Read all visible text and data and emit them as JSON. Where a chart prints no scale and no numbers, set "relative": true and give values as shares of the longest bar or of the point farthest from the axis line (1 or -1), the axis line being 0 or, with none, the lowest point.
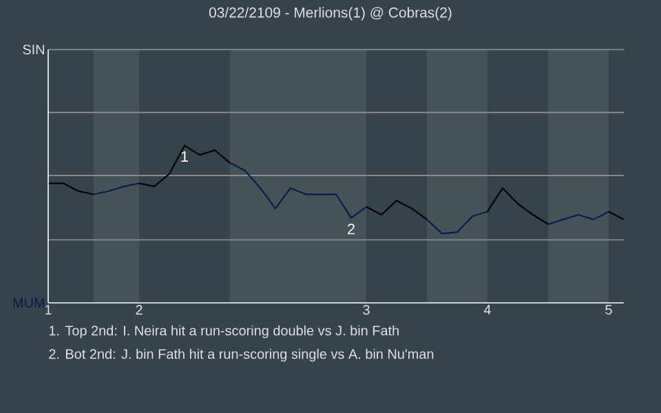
{
  "chart_data": {
    "type": "line",
    "title": "03/22/2109 - Merlions(1) @ Cobras(2)",
    "relative": true,
    "categories": [
      "1",
      null,
      null,
      null,
      null,
      null,
      "2",
      null,
      null,
      null,
      null,
      null,
      null,
      null,
      null,
      null,
      null,
      null,
      null,
      null,
      null,
      "3",
      null,
      null,
      null,
      null,
      null,
      null,
      null,
      "4",
      null,
      null,
      null,
      null,
      null,
      null,
      null,
      "5",
      null
    ],
    "series": [
      {
        "color": "#000000",
        "values": [
          0.76,
          0.76,
          0.71,
          0.69,
          null,
          null,
          0.76,
          0.74,
          0.82,
          1,
          0.94,
          0.97,
          0.89,
          null,
          null,
          null,
          null,
          null,
          null,
          null,
          null,
          0.61,
          0.56,
          0.65,
          0.6,
          0.53,
          null,
          null,
          null,
          0.58,
          0.73,
          0.63,
          0.56,
          0.5,
          null,
          null,
          null,
          0.58,
          0.53
        ]
      },
      {
        "color": "#0d1a4d",
        "values": [
          null,
          null,
          null,
          0.69,
          0.71,
          0.74,
          0.76,
          null,
          null,
          null,
          null,
          null,
          0.89,
          0.84,
          0.73,
          0.6,
          0.73,
          0.69,
          0.69,
          0.69,
          0.54,
          0.61,
          null,
          null,
          null,
          0.53,
          0.44,
          0.45,
          0.55,
          0.58,
          null,
          null,
          null,
          0.5,
          0.53,
          0.56,
          0.53,
          0.58,
          null
        ]
      }
    ],
    "ref_lines": [
      {
        "axis": "y",
        "value": 0.4,
        "color": "#939393"
      },
      {
        "axis": "y",
        "value": 0.81,
        "color": "#939393"
      },
      {
        "axis": "y",
        "value": 1.21,
        "color": "#939393"
      }
    ],
    "annotations": [
      "SIN",
      "MUM",
      {
        "text": "1",
        "y": 1
      },
      {
        "text": "2",
        "y": 0.54
      },
      "1. Top 2nd: I. Neira hit a run-scoring double vs J. bin Fath",
      "2. Bot 2nd: J. bin Fath hit a run-scoring single vs A. bin Nu'man"
    ]
  }
}
